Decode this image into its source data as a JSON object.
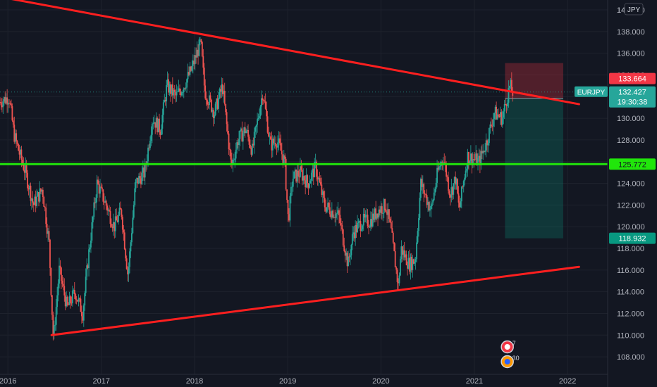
{
  "chart_data": {
    "type": "candlestick",
    "symbol": "EURJPY",
    "currency": "JPY",
    "currency_badge": "JPY",
    "colors": {
      "background": "#131722",
      "grid": "#1e222d",
      "axis_text": "#b2b5be",
      "trendline": "#ff1f1f",
      "support_line": "#21e60b",
      "candle_up": "#26a69a",
      "candle_down": "#ef5350",
      "stop_zone": "#f23645",
      "target_zone": "#089981",
      "current_price_label": "#26a69a",
      "stop_label": "#f23645",
      "target_label": "#089981",
      "entry_label": "#787b86"
    },
    "y_axis": {
      "ticks": [
        "108.000",
        "110.000",
        "112.000",
        "114.000",
        "116.000",
        "118.000",
        "120.000",
        "122.000",
        "124.000",
        "126.000",
        "128.000",
        "130.000",
        "132.000",
        "134.000",
        "136.000",
        "138.000",
        "140.000"
      ],
      "top_tick_visible": "14",
      "range": [
        106.5,
        141.0
      ]
    },
    "x_axis": {
      "labels": [
        "2016",
        "2017",
        "2018",
        "2019",
        "2020",
        "2021",
        "2022"
      ],
      "range": [
        "2015-12-01",
        "2022-08-15"
      ]
    },
    "price_labels": {
      "symbol_tag": "EURJPY",
      "current_price": "132.427",
      "countdown": "19:30:38",
      "stop_loss": "133.664",
      "entry": "131.850",
      "horizontal_level": "125.772",
      "take_profit": "118.932"
    },
    "levels": {
      "current_price": 132.427,
      "horizontal_level": 125.772,
      "position_stop": 133.664,
      "position_entry": 131.85,
      "position_target": 118.932
    },
    "position": {
      "start": "2021-05-01",
      "end": "2021-12-15"
    },
    "trendlines": [
      {
        "name": "",
        "from": {
          "date": "2015-12-01",
          "price": 141.2
        },
        "to": {
          "date": "2022-02-15",
          "price": 131.3
        }
      },
      {
        "name": "",
        "from": {
          "date": "2016-06-20",
          "price": 110.0
        },
        "to": {
          "date": "2022-02-15",
          "price": 116.3
        }
      }
    ],
    "price_path": [
      [
        "2015-12-01",
        131.5
      ],
      [
        "2016-01-05",
        132.0
      ],
      [
        "2016-01-25",
        128.5
      ],
      [
        "2016-02-12",
        127.0
      ],
      [
        "2016-03-10",
        125.0
      ],
      [
        "2016-04-10",
        122.0
      ],
      [
        "2016-05-15",
        123.5
      ],
      [
        "2016-06-10",
        118.5
      ],
      [
        "2016-06-27",
        109.5
      ],
      [
        "2016-07-20",
        116.0
      ],
      [
        "2016-08-20",
        112.5
      ],
      [
        "2016-09-20",
        114.0
      ],
      [
        "2016-10-20",
        112.0
      ],
      [
        "2016-11-10",
        117.0
      ],
      [
        "2016-12-15",
        124.0
      ],
      [
        "2017-01-20",
        122.0
      ],
      [
        "2017-02-20",
        120.0
      ],
      [
        "2017-03-20",
        121.5
      ],
      [
        "2017-04-15",
        115.5
      ],
      [
        "2017-05-15",
        124.0
      ],
      [
        "2017-06-20",
        125.0
      ],
      [
        "2017-07-20",
        130.0
      ],
      [
        "2017-08-20",
        129.0
      ],
      [
        "2017-09-15",
        133.0
      ],
      [
        "2017-10-20",
        132.0
      ],
      [
        "2017-11-20",
        133.0
      ],
      [
        "2017-12-20",
        134.5
      ],
      [
        "2018-01-25",
        137.0
      ],
      [
        "2018-02-10",
        132.5
      ],
      [
        "2018-03-20",
        130.5
      ],
      [
        "2018-04-20",
        133.0
      ],
      [
        "2018-05-25",
        125.5
      ],
      [
        "2018-06-20",
        128.0
      ],
      [
        "2018-07-20",
        129.0
      ],
      [
        "2018-08-15",
        127.0
      ],
      [
        "2018-09-25",
        132.5
      ],
      [
        "2018-10-25",
        127.5
      ],
      [
        "2018-11-20",
        128.0
      ],
      [
        "2018-12-20",
        126.0
      ],
      [
        "2019-01-03",
        120.5
      ],
      [
        "2019-01-20",
        124.5
      ],
      [
        "2019-02-20",
        125.0
      ],
      [
        "2019-03-20",
        124.0
      ],
      [
        "2019-04-20",
        125.5
      ],
      [
        "2019-05-25",
        122.0
      ],
      [
        "2019-06-20",
        121.5
      ],
      [
        "2019-07-20",
        121.0
      ],
      [
        "2019-08-25",
        116.5
      ],
      [
        "2019-09-15",
        119.5
      ],
      [
        "2019-10-20",
        120.5
      ],
      [
        "2019-11-20",
        120.5
      ],
      [
        "2019-12-20",
        121.5
      ],
      [
        "2020-01-20",
        122.0
      ],
      [
        "2020-02-10",
        119.5
      ],
      [
        "2020-03-09",
        114.5
      ],
      [
        "2020-03-20",
        118.0
      ],
      [
        "2020-04-20",
        116.5
      ],
      [
        "2020-05-15",
        117.0
      ],
      [
        "2020-06-05",
        124.0
      ],
      [
        "2020-07-15",
        121.5
      ],
      [
        "2020-08-10",
        125.0
      ],
      [
        "2020-09-01",
        126.5
      ],
      [
        "2020-09-28",
        123.0
      ],
      [
        "2020-10-20",
        124.5
      ],
      [
        "2020-11-02",
        121.5
      ],
      [
        "2020-12-05",
        126.5
      ],
      [
        "2021-01-20",
        126.0
      ],
      [
        "2021-02-20",
        128.0
      ],
      [
        "2021-03-20",
        130.5
      ],
      [
        "2021-04-20",
        130.0
      ],
      [
        "2021-05-20",
        133.0
      ],
      [
        "2021-05-31",
        132.4
      ]
    ],
    "annotations": [
      {
        "name": "event-badge-1",
        "count": "7"
      },
      {
        "name": "event-badge-2",
        "count": "30"
      }
    ]
  }
}
